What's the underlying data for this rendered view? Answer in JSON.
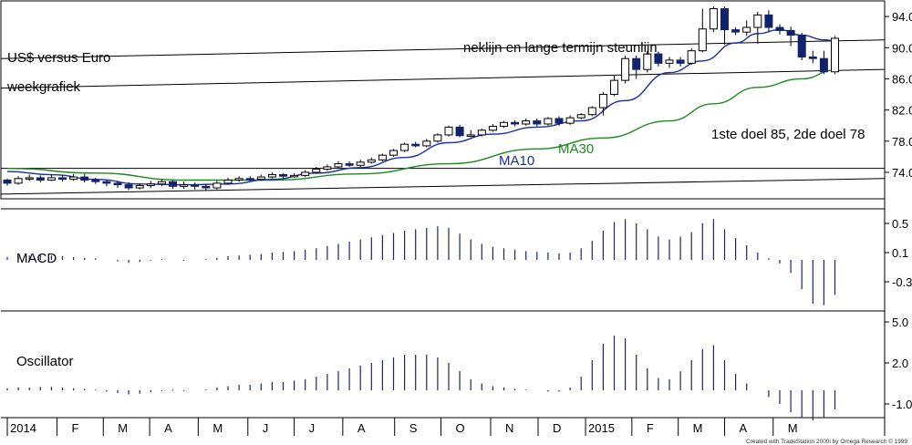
{
  "chart_data": {
    "type": "candlestick",
    "title": "US$ versus Euro",
    "subtitle": "weekgrafiek",
    "credit": "Created with TradeStation 2000i by Omega Research © 1999",
    "price_axis": {
      "ylim": [
        70.6,
        96.0
      ],
      "ticks": [
        94.0,
        90.0,
        86.0,
        82.0,
        78.0,
        74.0
      ],
      "tick_labels": [
        "94.0",
        "90.0",
        "86.0",
        "82.0",
        "78.0",
        "74.0"
      ]
    },
    "months": [
      {
        "label": "2014",
        "week": 0
      },
      {
        "label": "F",
        "week": 4.5
      },
      {
        "label": "M",
        "week": 8.7
      },
      {
        "label": "A",
        "week": 12.9
      },
      {
        "label": "M",
        "week": 17.3
      },
      {
        "label": "J",
        "week": 21.8
      },
      {
        "label": "J",
        "week": 26.0
      },
      {
        "label": "A",
        "week": 30.4
      },
      {
        "label": "S",
        "week": 35.1
      },
      {
        "label": "O",
        "week": 39.3
      },
      {
        "label": "N",
        "week": 43.8
      },
      {
        "label": "D",
        "week": 48.1
      },
      {
        "label": "2015",
        "week": 52.4
      },
      {
        "label": "F",
        "week": 56.6
      },
      {
        "label": "M",
        "week": 60.8
      },
      {
        "label": "A",
        "week": 65.0
      },
      {
        "label": "M",
        "week": 69.4
      }
    ],
    "candles": [
      [
        73.0,
        72.6,
        73.2,
        72.3
      ],
      [
        72.6,
        73.2,
        73.5,
        72.4
      ],
      [
        73.2,
        73.3,
        73.7,
        72.9
      ],
      [
        73.3,
        73.0,
        73.6,
        72.7
      ],
      [
        73.0,
        73.3,
        73.7,
        72.9
      ],
      [
        73.3,
        73.1,
        73.6,
        72.8
      ],
      [
        73.1,
        73.4,
        73.8,
        72.9
      ],
      [
        73.4,
        73.0,
        73.8,
        72.7
      ],
      [
        73.0,
        72.8,
        73.3,
        72.5
      ],
      [
        72.8,
        72.6,
        73.0,
        72.2
      ],
      [
        72.6,
        72.4,
        72.9,
        72.0
      ],
      [
        72.4,
        72.0,
        72.7,
        71.7
      ],
      [
        72.0,
        72.3,
        72.6,
        71.8
      ],
      [
        72.3,
        72.5,
        72.9,
        72.0
      ],
      [
        72.5,
        72.8,
        73.1,
        72.2
      ],
      [
        72.8,
        72.2,
        73.0,
        71.9
      ],
      [
        72.2,
        72.4,
        72.8,
        71.9
      ],
      [
        72.4,
        72.2,
        72.7,
        71.8
      ],
      [
        72.2,
        72.0,
        72.5,
        71.7
      ],
      [
        72.0,
        72.6,
        72.9,
        71.8
      ],
      [
        72.6,
        73.0,
        73.3,
        72.4
      ],
      [
        73.0,
        73.2,
        73.5,
        72.8
      ],
      [
        73.2,
        73.1,
        73.5,
        72.9
      ],
      [
        73.1,
        73.4,
        73.7,
        72.9
      ],
      [
        73.4,
        73.7,
        74.0,
        73.2
      ],
      [
        73.7,
        73.5,
        73.9,
        73.2
      ],
      [
        73.5,
        73.6,
        73.9,
        73.3
      ],
      [
        73.6,
        74.0,
        74.3,
        73.4
      ],
      [
        74.0,
        74.4,
        74.7,
        73.8
      ],
      [
        74.4,
        74.7,
        75.0,
        74.2
      ],
      [
        74.7,
        75.1,
        75.4,
        74.5
      ],
      [
        75.1,
        74.9,
        75.4,
        74.7
      ],
      [
        74.9,
        75.3,
        75.6,
        74.7
      ],
      [
        75.3,
        75.6,
        75.9,
        75.1
      ],
      [
        75.6,
        76.2,
        76.4,
        75.4
      ],
      [
        76.2,
        76.8,
        77.0,
        76.0
      ],
      [
        76.8,
        77.6,
        77.8,
        76.6
      ],
      [
        77.6,
        77.4,
        77.9,
        77.2
      ],
      [
        77.4,
        78.0,
        78.3,
        77.2
      ],
      [
        78.0,
        78.8,
        79.0,
        77.8
      ],
      [
        78.8,
        79.8,
        80.0,
        78.6
      ],
      [
        79.8,
        78.7,
        80.1,
        78.5
      ],
      [
        78.7,
        78.8,
        79.4,
        78.5
      ],
      [
        78.8,
        79.4,
        79.6,
        78.6
      ],
      [
        79.4,
        79.9,
        80.2,
        79.2
      ],
      [
        79.9,
        80.4,
        80.6,
        79.7
      ],
      [
        80.4,
        80.2,
        80.7,
        79.9
      ],
      [
        80.2,
        80.6,
        80.9,
        80.0
      ],
      [
        80.6,
        80.2,
        80.9,
        79.9
      ],
      [
        80.2,
        80.9,
        81.1,
        80.0
      ],
      [
        80.9,
        80.3,
        81.2,
        80.0
      ],
      [
        80.3,
        81.0,
        81.3,
        80.1
      ],
      [
        81.0,
        81.4,
        81.6,
        80.8
      ],
      [
        81.4,
        82.3,
        82.5,
        81.2
      ],
      [
        82.3,
        84.0,
        84.3,
        81.3
      ],
      [
        84.0,
        85.8,
        86.4,
        83.8
      ],
      [
        85.8,
        88.6,
        89.0,
        85.4
      ],
      [
        88.6,
        87.2,
        89.0,
        86.0
      ],
      [
        87.2,
        89.2,
        89.6,
        86.8
      ],
      [
        89.2,
        88.0,
        89.5,
        87.6
      ],
      [
        88.0,
        88.4,
        88.8,
        87.4
      ],
      [
        88.4,
        88.0,
        88.8,
        87.6
      ],
      [
        88.0,
        89.6,
        89.9,
        87.8
      ],
      [
        89.6,
        92.4,
        95.0,
        89.4
      ],
      [
        92.4,
        95.0,
        95.3,
        92.0
      ],
      [
        95.0,
        92.3,
        95.3,
        90.4
      ],
      [
        92.3,
        92.0,
        92.6,
        91.6
      ],
      [
        92.0,
        92.6,
        93.5,
        91.5
      ],
      [
        92.6,
        94.2,
        94.6,
        90.5
      ],
      [
        94.2,
        92.6,
        94.8,
        92.0
      ],
      [
        92.6,
        92.2,
        93.0,
        91.7
      ],
      [
        92.2,
        91.6,
        92.7,
        90.2
      ],
      [
        91.6,
        88.8,
        91.9,
        88.4
      ],
      [
        88.8,
        88.6,
        89.6,
        88.0
      ],
      [
        88.6,
        86.9,
        89.6,
        86.6
      ],
      [
        86.9,
        91.2,
        91.5,
        86.6
      ]
    ],
    "ma10_label": "MA10",
    "ma30_label": "MA30",
    "ma10_color": "#1a2ea5",
    "ma30_color": "#1d8a1d",
    "ma10": [
      [
        0,
        74.1
      ],
      [
        4,
        73.7
      ],
      [
        8,
        73.1
      ],
      [
        12,
        72.5
      ],
      [
        16,
        72.4
      ],
      [
        20,
        72.5
      ],
      [
        24,
        73.1
      ],
      [
        28,
        73.9
      ],
      [
        32,
        74.6
      ],
      [
        36,
        75.9
      ],
      [
        40,
        77.8
      ],
      [
        44,
        78.9
      ],
      [
        48,
        79.8
      ],
      [
        52,
        80.6
      ],
      [
        56,
        83.2
      ],
      [
        60,
        86.8
      ],
      [
        63,
        88.3
      ],
      [
        66,
        90.6
      ],
      [
        68,
        91.8
      ],
      [
        70,
        92.3
      ],
      [
        72,
        91.6
      ],
      [
        74,
        91.0
      ],
      [
        75,
        90.9
      ]
    ],
    "ma30": [
      [
        0,
        74.5
      ],
      [
        8,
        73.9
      ],
      [
        16,
        73.0
      ],
      [
        24,
        73.0
      ],
      [
        32,
        73.8
      ],
      [
        40,
        75.1
      ],
      [
        48,
        77.0
      ],
      [
        54,
        78.4
      ],
      [
        60,
        80.6
      ],
      [
        64,
        82.8
      ],
      [
        68,
        84.9
      ],
      [
        72,
        86.0
      ],
      [
        75,
        87.1
      ]
    ],
    "lines": [
      {
        "name": "neklijn",
        "points": [
          [
            0,
            88.6
          ],
          [
            75,
            91.0
          ]
        ]
      },
      {
        "name": "steunlijn",
        "points": [
          [
            0,
            84.8
          ],
          [
            75,
            87.2
          ]
        ]
      },
      {
        "name": "support-1",
        "points": [
          [
            0,
            74.5
          ],
          [
            75,
            74.5
          ]
        ]
      },
      {
        "name": "support-2",
        "points": [
          [
            0,
            71.2
          ],
          [
            75,
            73.2
          ]
        ]
      }
    ],
    "annotations": {
      "neklijn": "neklijn en lange termijn steunlijn",
      "targets": "1ste doel 85, 2de doel 78"
    },
    "macd": {
      "label": "MACD",
      "ylim": [
        -0.7,
        0.7
      ],
      "ticks": [
        0.5,
        0.1,
        -0.3
      ],
      "tick_labels": [
        "0.5",
        "0.1",
        "-0.3"
      ],
      "values": [
        0.04,
        0.05,
        0.06,
        0.07,
        0.06,
        0.05,
        0.04,
        0.03,
        0.02,
        0.0,
        -0.02,
        -0.04,
        -0.03,
        -0.01,
        0.01,
        0.0,
        -0.01,
        0.0,
        0.01,
        0.03,
        0.05,
        0.06,
        0.07,
        0.08,
        0.1,
        0.11,
        0.12,
        0.14,
        0.16,
        0.19,
        0.22,
        0.25,
        0.28,
        0.31,
        0.34,
        0.37,
        0.4,
        0.42,
        0.44,
        0.46,
        0.44,
        0.36,
        0.28,
        0.22,
        0.18,
        0.16,
        0.14,
        0.12,
        0.11,
        0.1,
        0.09,
        0.1,
        0.16,
        0.26,
        0.4,
        0.52,
        0.56,
        0.5,
        0.42,
        0.32,
        0.28,
        0.32,
        0.38,
        0.5,
        0.56,
        0.42,
        0.3,
        0.2,
        0.1,
        0.02,
        -0.05,
        -0.18,
        -0.4,
        -0.6,
        -0.62,
        -0.48
      ]
    },
    "oscillator": {
      "label": "Oscillator",
      "ylim": [
        -2.0,
        5.8
      ],
      "ticks": [
        5.0,
        2.0,
        -1.0
      ],
      "tick_labels": [
        "5.0",
        "2.0",
        "-1.0"
      ],
      "values": [
        0.15,
        0.2,
        0.2,
        0.25,
        0.25,
        0.2,
        0.15,
        0.1,
        0.05,
        -0.1,
        -0.2,
        -0.3,
        -0.25,
        -0.15,
        -0.05,
        0.05,
        -0.05,
        0.0,
        0.05,
        0.2,
        0.3,
        0.4,
        0.4,
        0.5,
        0.6,
        0.6,
        0.7,
        0.8,
        1.0,
        1.2,
        1.4,
        1.6,
        1.8,
        2.0,
        2.2,
        2.4,
        2.6,
        2.6,
        2.6,
        2.4,
        2.0,
        1.4,
        0.8,
        0.5,
        0.3,
        0.2,
        0.1,
        0.05,
        0.0,
        -0.1,
        -0.1,
        0.2,
        1.0,
        2.2,
        3.4,
        4.0,
        3.8,
        2.6,
        1.6,
        0.9,
        0.8,
        1.4,
        2.2,
        3.0,
        3.3,
        2.2,
        1.2,
        0.5,
        0.0,
        -0.5,
        -1.0,
        -1.6,
        -2.0,
        -2.2,
        -2.0,
        -1.4
      ]
    }
  }
}
